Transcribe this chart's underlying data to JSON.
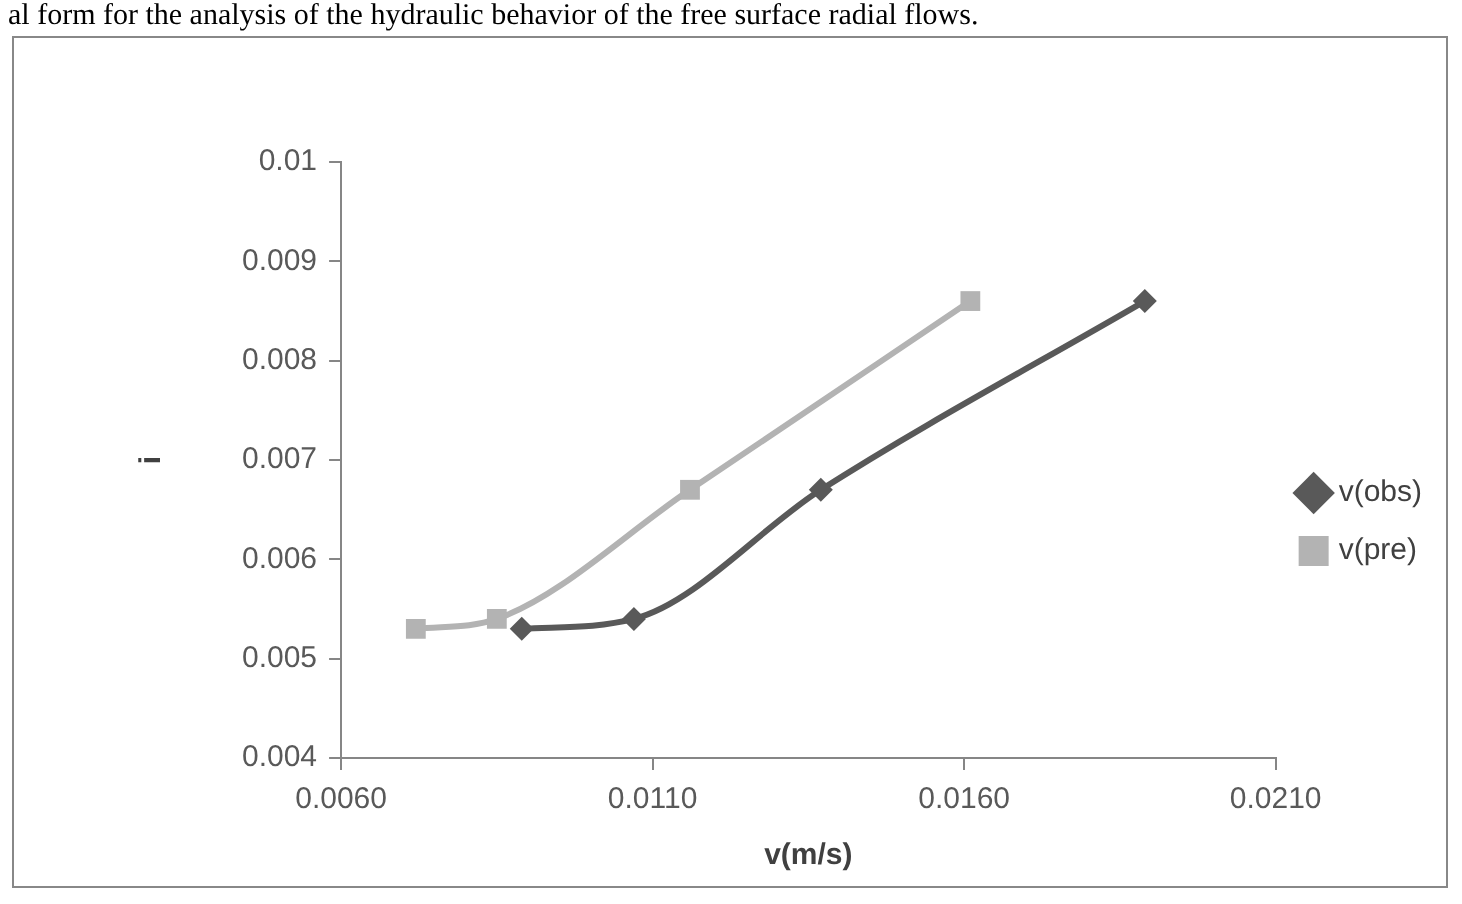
{
  "chart_data": {
    "type": "line",
    "annotations": [
      "al form for the analysis of the hydraulic behavior of the free surface radial flows."
    ],
    "xlabel": "v(m/s)",
    "ylabel": "i",
    "series": [
      {
        "name": "v(obs)",
        "color": "#595959",
        "marker": "diamond",
        "x": [
          0.0089,
          0.0107,
          0.0137,
          0.0189
        ],
        "values": [
          0.0053,
          0.0054,
          0.0067,
          0.0086
        ]
      },
      {
        "name": "v(pre)",
        "color": "#b3b3b3",
        "marker": "square",
        "x": [
          0.0072,
          0.0085,
          0.0116,
          0.0161
        ],
        "values": [
          0.0053,
          0.0054,
          0.0067,
          0.0086
        ]
      }
    ],
    "xlim": [
      0.006,
      0.021
    ],
    "xticks": [
      {
        "value": 0.006,
        "label": "0.0060"
      },
      {
        "value": 0.011,
        "label": "0.0110"
      },
      {
        "value": 0.016,
        "label": "0.0160"
      },
      {
        "value": 0.021,
        "label": "0.0210"
      }
    ],
    "ylim": [
      0.004,
      0.01
    ],
    "yticks": [
      0.004,
      0.005,
      0.006,
      0.007,
      0.008,
      0.009,
      0.01
    ],
    "grid": false,
    "legend": "right",
    "line_style": "solid"
  }
}
